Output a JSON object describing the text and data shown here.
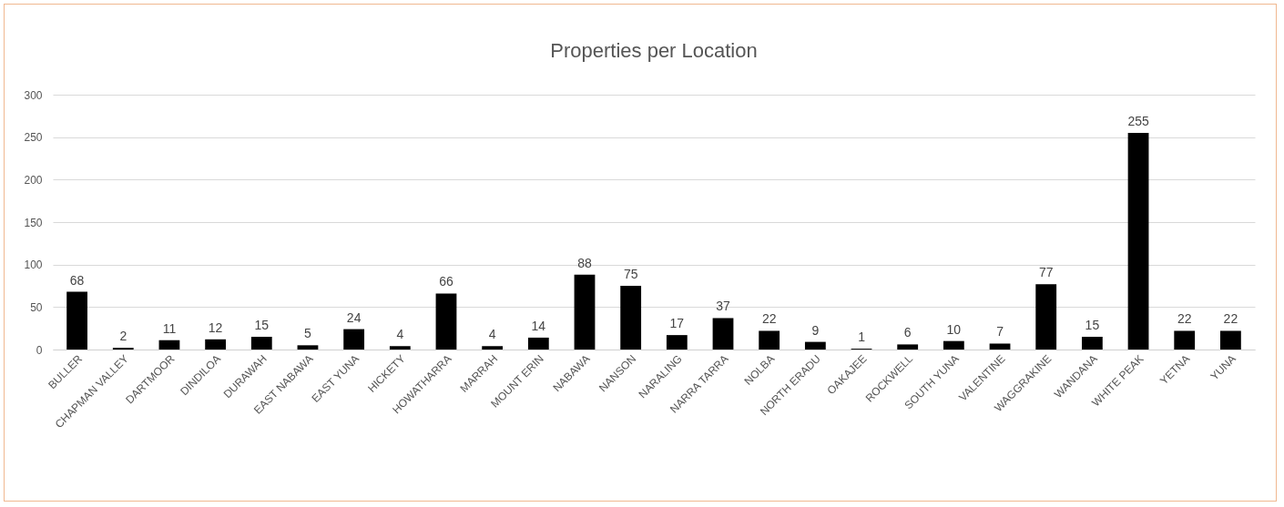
{
  "chart_data": {
    "type": "bar",
    "title": "Properties per Location",
    "categories": [
      "BULLER",
      "CHAPMAN VALLEY",
      "DARTMOOR",
      "DINDILOA",
      "DURAWAH",
      "EAST NABAWA",
      "EAST YUNA",
      "HICKETY",
      "HOWATHARRA",
      "MARRAH",
      "MOUNT ERIN",
      "NABAWA",
      "NANSON",
      "NARALING",
      "NARRA TARRA",
      "NOLBA",
      "NORTH ERADU",
      "OAKAJEE",
      "ROCKWELL",
      "SOUTH YUNA",
      "VALENTINE",
      "WAGGRAKINE",
      "WANDANA",
      "WHITE PEAK",
      "YETNA",
      "YUNA"
    ],
    "values": [
      68,
      2,
      11,
      12,
      15,
      5,
      24,
      4,
      66,
      4,
      14,
      88,
      75,
      17,
      37,
      22,
      9,
      1,
      6,
      10,
      7,
      77,
      15,
      255,
      22,
      22
    ],
    "color": "#000000",
    "ylim": [
      0,
      300
    ],
    "yticks": [
      0,
      50,
      100,
      150,
      200,
      250,
      300
    ],
    "grid": "y",
    "data_labels": true
  }
}
